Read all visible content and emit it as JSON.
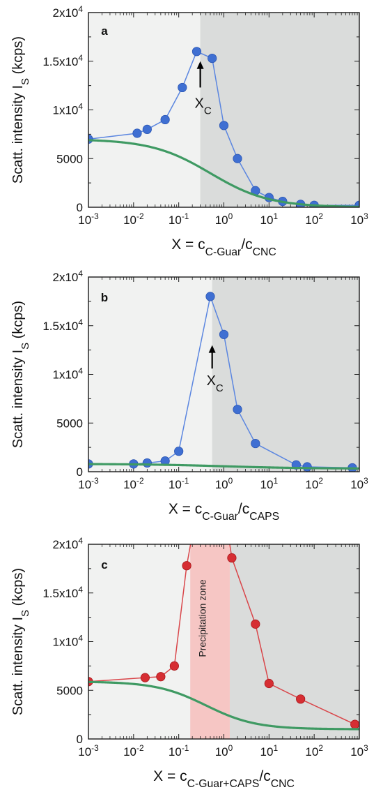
{
  "chart_data": [
    {
      "panel": "a",
      "type": "line",
      "x_scale": "log",
      "xlim": [
        0.001,
        1000
      ],
      "ylim": [
        0,
        20000
      ],
      "x_ticks": [
        "10-3",
        "10-2",
        "10-1",
        "100",
        "101",
        "102",
        "103"
      ],
      "y_ticks": [
        "0",
        "5000",
        "1x104",
        "1.5x104",
        "2x104"
      ],
      "xlabel": {
        "main": "X = c",
        "sub1": "C-Guar",
        "mid": "/c",
        "sub2": "CNC"
      },
      "ylabel": {
        "main": "Scatt. intensity I",
        "sub": "S",
        "tail": " (kcps)"
      },
      "shade_from_x": 0.3,
      "annotation": {
        "label": "X",
        "sub": "C",
        "x": 0.3,
        "arrow_tip_y": 15000,
        "arrow_base_y": 12300,
        "text_y": 10200
      },
      "series": [
        {
          "style": "blue-markers",
          "x": [
            0.001,
            0.012,
            0.02,
            0.05,
            0.12,
            0.25,
            0.55,
            1.0,
            2.0,
            5.0,
            10,
            20,
            50,
            100,
            1000
          ],
          "y": [
            7000,
            7600,
            8000,
            9000,
            12300,
            16000,
            15300,
            8400,
            5000,
            1700,
            1000,
            600,
            300,
            200,
            200
          ]
        },
        {
          "style": "green-curve",
          "sigmoid": {
            "high": 7000,
            "low": 0,
            "mid": 0.5,
            "width": 0.65
          }
        }
      ]
    },
    {
      "panel": "b",
      "type": "line",
      "x_scale": "log",
      "xlim": [
        0.001,
        1000
      ],
      "ylim": [
        0,
        20000
      ],
      "x_ticks": [
        "10-3",
        "10-2",
        "10-1",
        "100",
        "101",
        "102",
        "103"
      ],
      "y_ticks": [
        "0",
        "5000",
        "1x104",
        "1.5x104",
        "2x104"
      ],
      "xlabel": {
        "main": "X = c",
        "sub1": "C-Guar",
        "mid": "/c",
        "sub2": "CAPS"
      },
      "ylabel": {
        "main": "Scatt. intensity I",
        "sub": "S",
        "tail": " (kcps)"
      },
      "shade_from_x": 0.55,
      "annotation": {
        "label": "X",
        "sub": "C",
        "x": 0.55,
        "arrow_tip_y": 13000,
        "arrow_base_y": 10600,
        "text_y": 8900
      },
      "series": [
        {
          "style": "blue-markers",
          "x": [
            0.001,
            0.01,
            0.02,
            0.05,
            0.1,
            0.5,
            1.0,
            2.0,
            5.0,
            40,
            70,
            700
          ],
          "y": [
            800,
            800,
            900,
            1100,
            2100,
            18000,
            14100,
            6400,
            2900,
            700,
            500,
            400
          ]
        },
        {
          "style": "green-curve",
          "sigmoid": {
            "high": 800,
            "low": 320,
            "mid": 1.0,
            "width": 0.9
          }
        }
      ]
    },
    {
      "panel": "c",
      "type": "line",
      "x_scale": "log",
      "xlim": [
        0.001,
        1000
      ],
      "ylim": [
        0,
        20000
      ],
      "x_ticks": [
        "10-3",
        "10-2",
        "10-1",
        "100",
        "101",
        "102",
        "103"
      ],
      "y_ticks": [
        "0",
        "5000",
        "1x104",
        "1.5x104",
        "2x104"
      ],
      "xlabel": {
        "main": "X = c",
        "sub1": "C-Guar+CAPS",
        "mid": "/c",
        "sub2": "CNC"
      },
      "ylabel": {
        "main": "Scatt. intensity I",
        "sub": "S",
        "tail": " (kcps)"
      },
      "shade_from_x": 1.35,
      "band": {
        "from_x": 0.18,
        "to_x": 1.35,
        "label": "Precipitation zone"
      },
      "series": [
        {
          "style": "red-markers",
          "x": [
            0.001,
            0.018,
            0.04,
            0.08,
            0.15,
            0.2,
            1.25,
            1.5,
            5.0,
            10,
            50,
            800
          ],
          "y": [
            5900,
            6300,
            6400,
            7500,
            17800,
            21000,
            21000,
            18600,
            11800,
            5700,
            4100,
            1500
          ],
          "clip_top": true
        },
        {
          "style": "green-curve",
          "sigmoid": {
            "high": 5900,
            "low": 1000,
            "mid": 0.4,
            "width": 0.55
          }
        }
      ]
    }
  ]
}
